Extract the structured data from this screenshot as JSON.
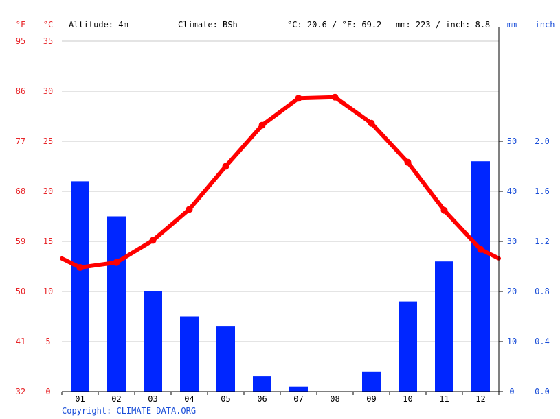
{
  "header": {
    "altitude": "Altitude: 4m",
    "climate": "Climate: BSh",
    "temp_avg": "°C: 20.6 / °F: 69.2",
    "precip_total": "mm: 223 / inch: 8.8"
  },
  "copyright": "Copyright: CLIMATE-DATA.ORG",
  "colors": {
    "temperature": "#ff0000",
    "precipitation": "#0026ff",
    "axis_temp_labels": "#e8262a",
    "axis_precip_labels": "#1a4ed8",
    "grid": "#c8c8c8"
  },
  "chart_data": {
    "type": "bar",
    "categories": [
      "01",
      "02",
      "03",
      "04",
      "05",
      "06",
      "07",
      "08",
      "09",
      "10",
      "11",
      "12"
    ],
    "series": [
      {
        "kind": "bar",
        "axis": "right",
        "values": [
          42,
          35,
          20,
          15,
          13,
          3,
          1,
          0,
          4,
          18,
          26,
          46
        ]
      },
      {
        "kind": "line",
        "axis": "left",
        "values": [
          12.4,
          12.9,
          15.1,
          18.2,
          22.5,
          26.6,
          29.3,
          29.4,
          26.8,
          22.9,
          18.1,
          14.2
        ]
      }
    ],
    "y_left": {
      "unit_c": "°C",
      "unit_f": "°F",
      "ylim": [
        0,
        35
      ],
      "ticks_c": [
        "0",
        "5",
        "10",
        "15",
        "20",
        "25",
        "30",
        "35"
      ],
      "ticks_f": [
        "32",
        "41",
        "50",
        "59",
        "68",
        "77",
        "86",
        "95"
      ]
    },
    "y_right": {
      "unit_mm": "mm",
      "unit_inch": "inch",
      "ylim": [
        0,
        70
      ],
      "ticks_mm": [
        "0",
        "10",
        "20",
        "30",
        "40",
        "50"
      ],
      "ticks_inch": [
        "0.0",
        "0.4",
        "0.8",
        "1.2",
        "1.6",
        "2.0"
      ]
    },
    "grid": true
  }
}
